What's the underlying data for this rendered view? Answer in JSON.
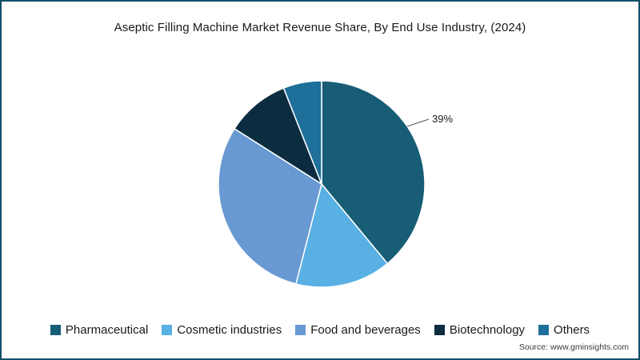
{
  "title": "Aseptic Filling Machine Market Revenue Share, By End Use Industry, (2024)",
  "source": "Source: www.gminsights.com",
  "frame": {
    "border_color": "#14506b",
    "background": "#ffffff"
  },
  "chart_data": {
    "type": "pie",
    "title": "Aseptic Filling Machine Market Revenue Share, By End Use Industry, (2024)",
    "start_angle_deg": 0,
    "direction": "clockwise",
    "legend_position": "bottom",
    "series": [
      {
        "name": "Pharmaceutical",
        "value": 39,
        "color": "#175d76"
      },
      {
        "name": "Cosmetic industries",
        "value": 15,
        "color": "#58b0e3"
      },
      {
        "name": "Food and beverages",
        "value": 30,
        "color": "#6899d3"
      },
      {
        "name": "Biotechnology",
        "value": 10,
        "color": "#0c2d40"
      },
      {
        "name": "Others",
        "value": 6,
        "color": "#1e6f99"
      }
    ],
    "data_labels": [
      {
        "series": "Pharmaceutical",
        "text": "39%"
      }
    ]
  }
}
